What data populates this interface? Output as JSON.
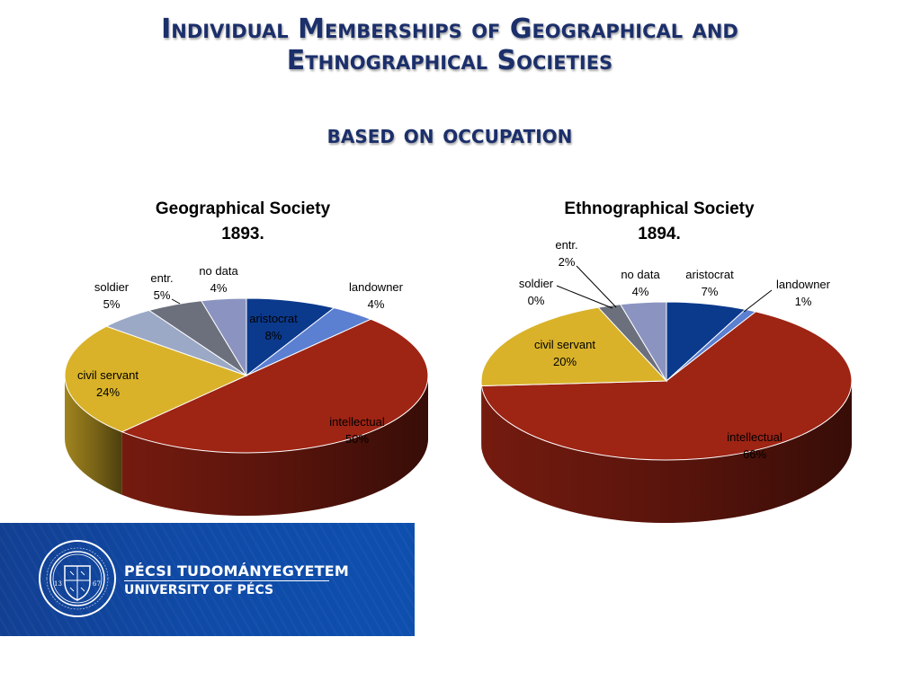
{
  "slide": {
    "title_line1": "Individual Memberships of Geographical and",
    "title_line2": "Ethnographical Societies",
    "subtitle": "based on occupation"
  },
  "logo": {
    "name_hu": "PÉCSI TUDOMÁNYEGYETEM",
    "name_en": "UNIVERSITY OF PÉCS",
    "seal_text": "UNIVERSITAS QUINQUEECCLESIENSIS",
    "seal_year_left": "13",
    "seal_year_right": "67"
  },
  "colors": {
    "title": "#1b2f6b",
    "aristocrat": "#0b3a8c",
    "landowner": "#5b7fd1",
    "intellectual": "#9e2414",
    "civil servant": "#d9b229",
    "soldier": "#9ba9c6",
    "entr.": "#6b707c",
    "no data": "#8b94c0",
    "band": "#0f4aa6"
  },
  "chart_data": [
    {
      "type": "pie",
      "title_line1": "Geographical Society",
      "title_line2": "1893.",
      "categories": [
        "aristocrat",
        "landowner",
        "intellectual",
        "civil servant",
        "soldier",
        "entr.",
        "no data"
      ],
      "values": [
        8,
        4,
        50,
        24,
        5,
        5,
        4
      ],
      "labels": [
        "8%",
        "4%",
        "50%",
        "24%",
        "5%",
        "5%",
        "4%"
      ]
    },
    {
      "type": "pie",
      "title_line1": "Ethnographical Society",
      "title_line2": "1894.",
      "categories": [
        "aristocrat",
        "landowner",
        "intellectual",
        "civil servant",
        "soldier",
        "entr.",
        "no data"
      ],
      "values": [
        7,
        1,
        66,
        20,
        0,
        2,
        4
      ],
      "labels": [
        "7%",
        "1%",
        "66%",
        "20%",
        "0%",
        "2%",
        "4%"
      ]
    }
  ]
}
